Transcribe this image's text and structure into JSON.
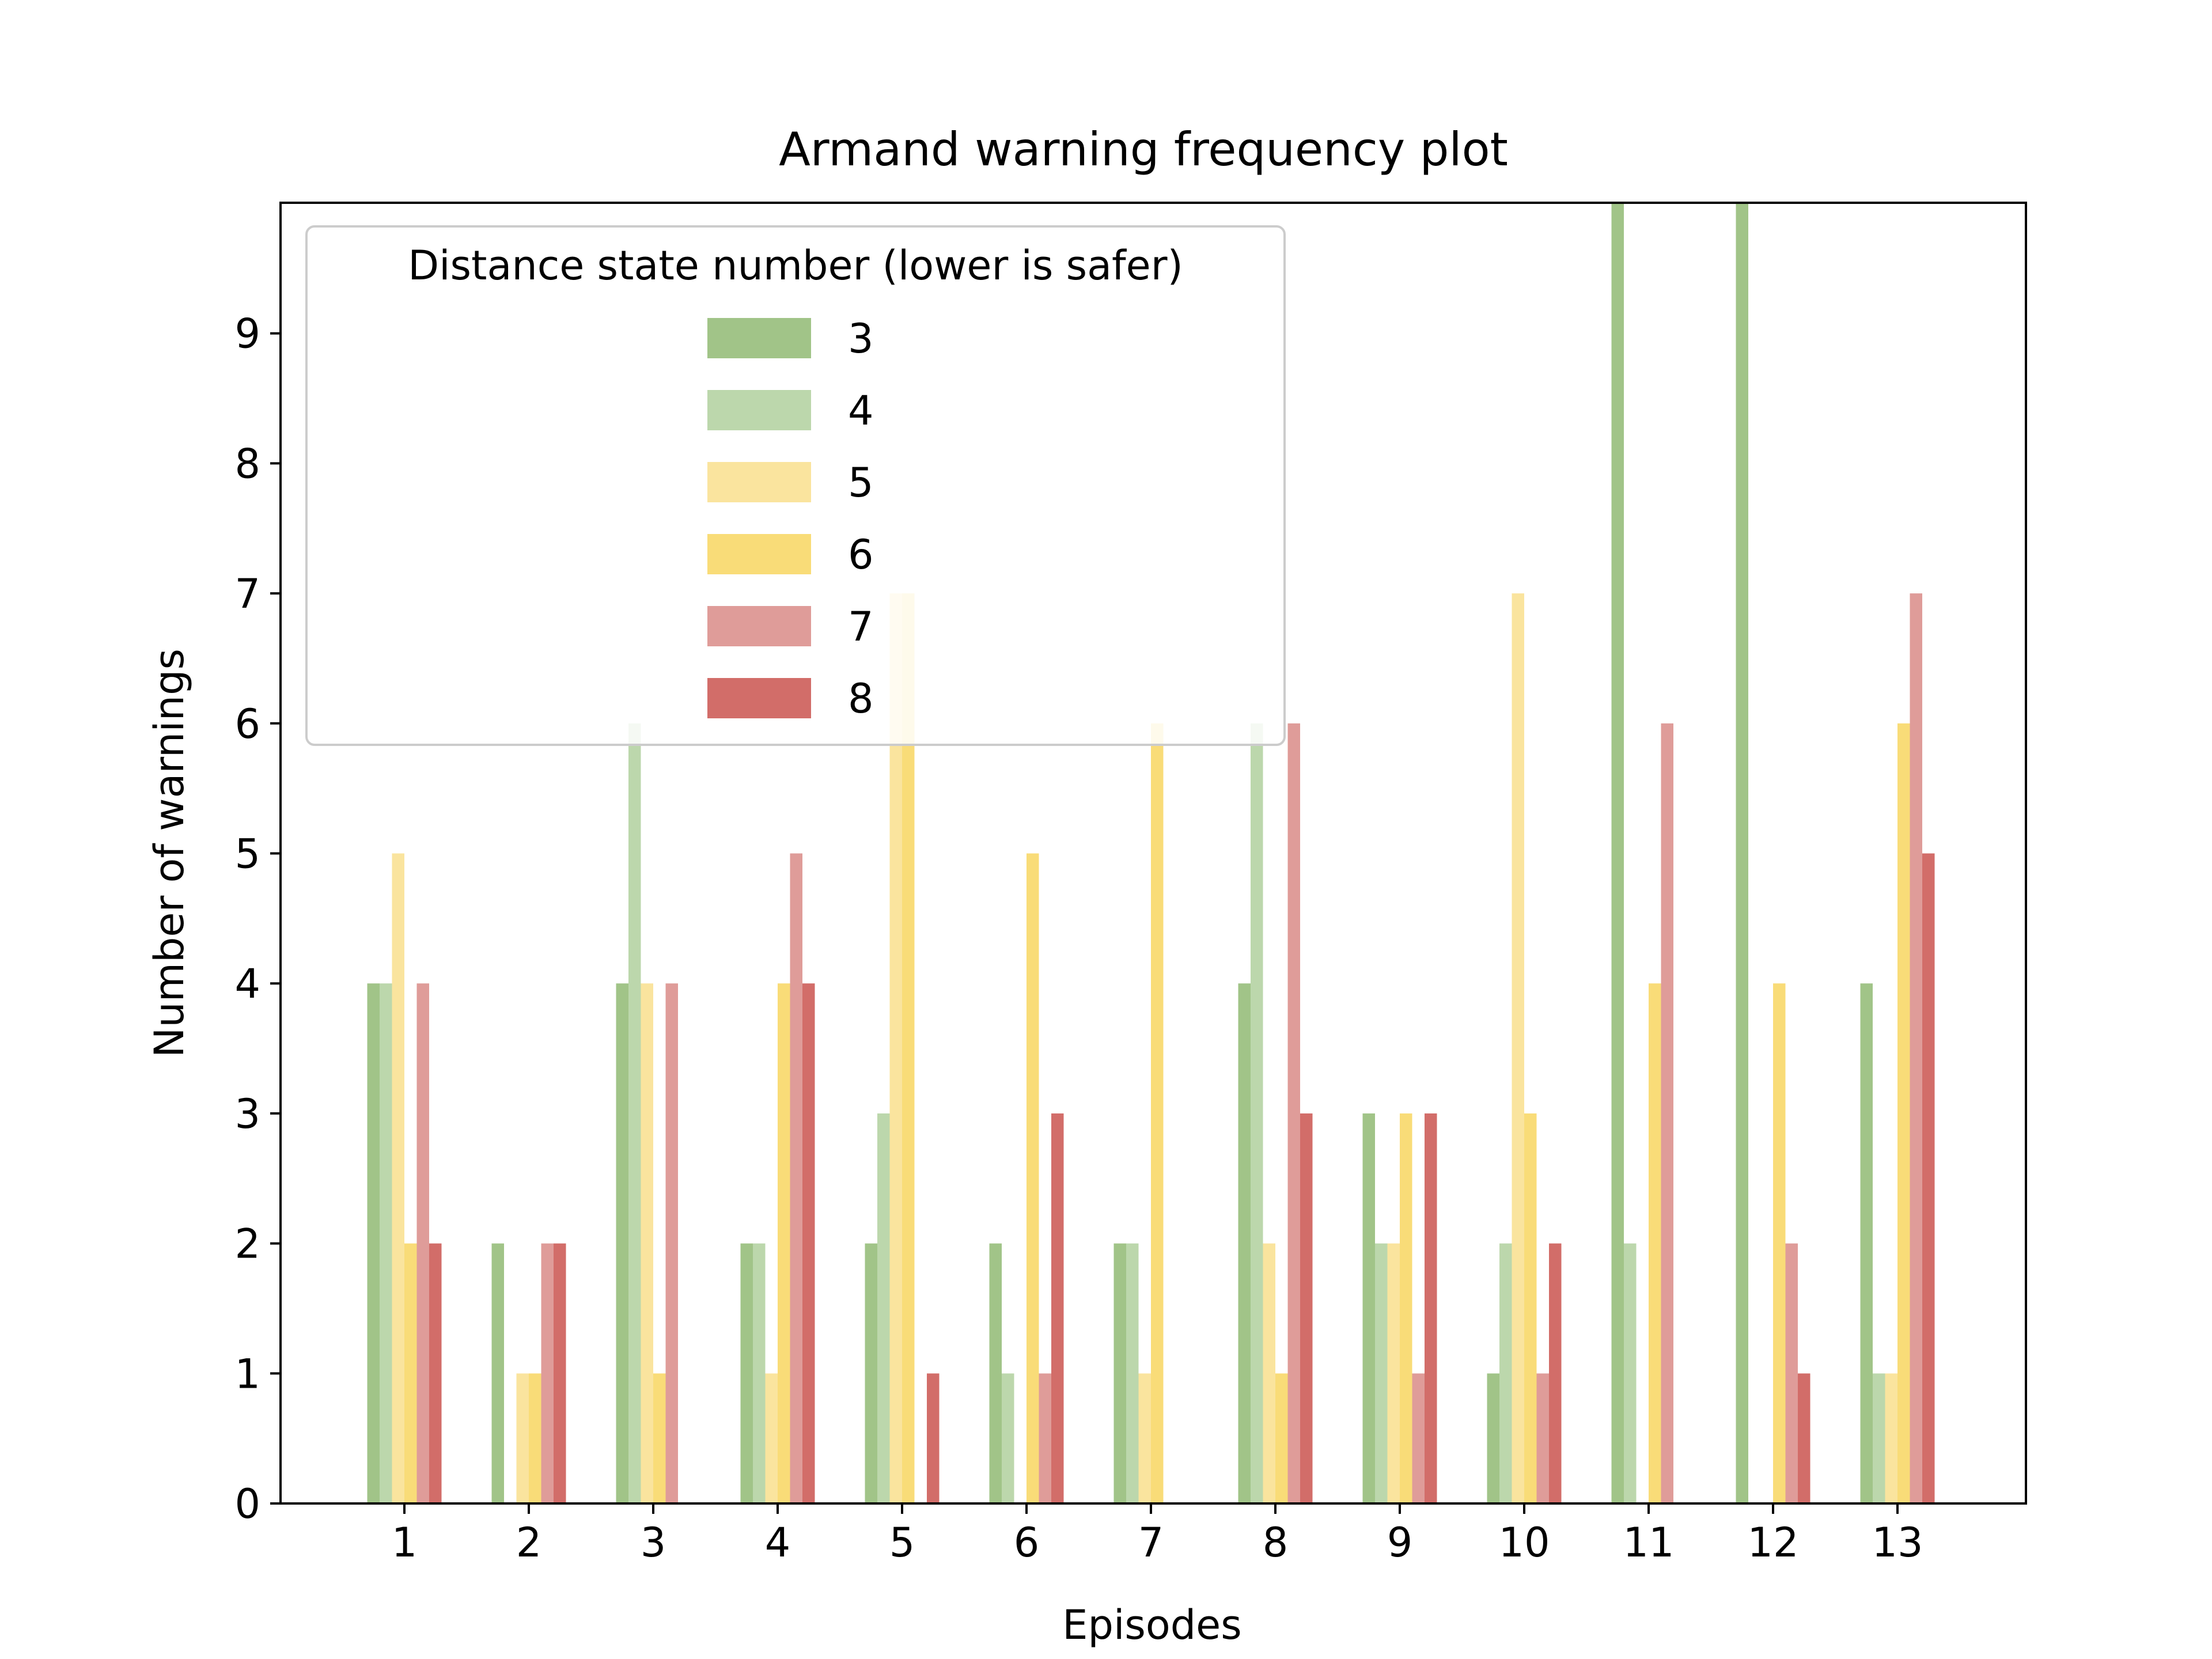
{
  "chart_data": {
    "type": "bar",
    "title": "Armand warning frequency plot",
    "xlabel": "Episodes",
    "ylabel": "Number of warnings",
    "categories": [
      "1",
      "2",
      "3",
      "4",
      "5",
      "6",
      "7",
      "8",
      "9",
      "10",
      "11",
      "12",
      "13"
    ],
    "ylim": [
      0,
      10
    ],
    "yticks": [
      "0",
      "1",
      "2",
      "3",
      "4",
      "5",
      "6",
      "7",
      "8",
      "9"
    ],
    "grid": false,
    "legend": {
      "title": "Distance state number (lower is safer)",
      "placement": "top-left"
    },
    "series": [
      {
        "name": "3",
        "color": "#a1c488",
        "values": [
          4,
          2,
          4,
          2,
          2,
          2,
          2,
          4,
          3,
          1,
          10,
          10,
          4
        ]
      },
      {
        "name": "4",
        "color": "#bcd7ac",
        "values": [
          4,
          0,
          6,
          2,
          3,
          1,
          2,
          6,
          2,
          2,
          2,
          0,
          1
        ]
      },
      {
        "name": "5",
        "color": "#fae49e",
        "values": [
          5,
          1,
          4,
          1,
          7,
          0,
          1,
          2,
          2,
          7,
          0,
          0,
          1
        ]
      },
      {
        "name": "6",
        "color": "#f9dc78",
        "values": [
          2,
          1,
          1,
          4,
          7,
          5,
          6,
          1,
          3,
          3,
          4,
          4,
          6
        ]
      },
      {
        "name": "7",
        "color": "#df9c99",
        "values": [
          4,
          2,
          4,
          5,
          0,
          1,
          0,
          6,
          1,
          1,
          6,
          2,
          7
        ]
      },
      {
        "name": "8",
        "color": "#d26d69",
        "values": [
          2,
          2,
          0,
          4,
          1,
          3,
          0,
          3,
          3,
          2,
          0,
          1,
          5
        ]
      }
    ]
  }
}
